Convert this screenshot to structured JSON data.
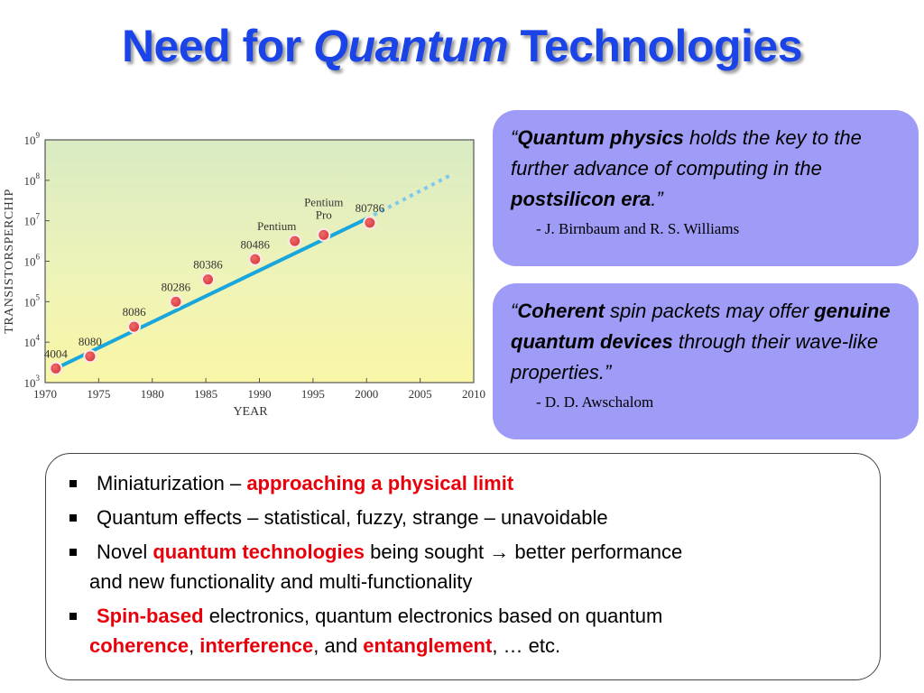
{
  "slide": {
    "title_part1": "Need for ",
    "title_part2": "Quantum",
    "title_part3": " Technologies"
  },
  "chart_data": {
    "type": "scatter",
    "title": "",
    "xlabel": "YEAR",
    "ylabel": "TRANSISTORSPERCHIP",
    "xlim": [
      1970,
      2010
    ],
    "y_scale": "log",
    "ylim_exponent": [
      3,
      9
    ],
    "x_ticks": [
      "1970",
      "1975",
      "1980",
      "1985",
      "1990",
      "1995",
      "2000",
      "2005",
      "2010"
    ],
    "y_ticks": [
      3,
      4,
      5,
      6,
      7,
      8,
      9
    ],
    "y_tick_base": "10",
    "points": [
      {
        "label": "4004",
        "x": 1971,
        "log10_y": 3.35
      },
      {
        "label": "8080",
        "x": 1974.2,
        "log10_y": 3.65
      },
      {
        "label": "8086",
        "x": 1978.3,
        "log10_y": 4.38
      },
      {
        "label": "80286",
        "x": 1982.2,
        "log10_y": 5.0
      },
      {
        "label": "80386",
        "x": 1985.2,
        "log10_y": 5.55
      },
      {
        "label": "80486",
        "x": 1989.6,
        "log10_y": 6.05
      },
      {
        "label": "Pentium",
        "x": 1993.3,
        "log10_y": 6.5
      },
      {
        "label": "Pentium\nPro",
        "x": 1996,
        "log10_y": 6.65
      },
      {
        "label": "80786",
        "x": 2000.3,
        "log10_y": 6.95
      }
    ],
    "trend_line": {
      "x": [
        1971,
        2000
      ],
      "log10_y": [
        3.35,
        7.05
      ]
    },
    "trend_projection": {
      "x": [
        2000,
        2008
      ],
      "log10_y": [
        7.05,
        8.15
      ]
    },
    "colors": {
      "line": "#18a6dc",
      "projection": "#7fc8ee",
      "marker_fill": "#e84c4c",
      "marker_stroke": "#ffe8e8"
    }
  },
  "quotes": [
    {
      "open": "“",
      "bold1": "Quantum physics",
      "text1": " holds the key to the further advance of computing in the ",
      "bold2": "postsilicon era",
      "close": ".”",
      "attribution": "- J. Birnbaum and R. S. Williams"
    },
    {
      "open": "“",
      "bold1": "Coherent",
      "text1": " spin packets may offer ",
      "bold2": "genuine quantum devices",
      "text2": " through their wave-like properties.”",
      "attribution": "- D. D. Awschalom"
    }
  ],
  "bullets": [
    {
      "pre": "Miniaturization – ",
      "red1": "approaching a physical limit"
    },
    {
      "pre": "Quantum effects – statistical, fuzzy, strange – unavoidable"
    },
    {
      "pre": "Novel ",
      "red1": "quantum technologies",
      "mid": " being sought ",
      "arrow": "→",
      "post": " better performance",
      "cont": "and new functionality and multi-functionality"
    },
    {
      "red1": "Spin-based",
      "mid": " electronics, quantum electronics based on quantum",
      "cont_red1": "coherence",
      "cont_t1": ", ",
      "cont_red2": "interference",
      "cont_t2": ", and ",
      "cont_red3": "entanglement",
      "cont_t3": ", … etc."
    }
  ],
  "colors": {
    "title": "#1a44e8",
    "accent_red": "#e8000b",
    "quote_bg": "#9e9cf6"
  }
}
